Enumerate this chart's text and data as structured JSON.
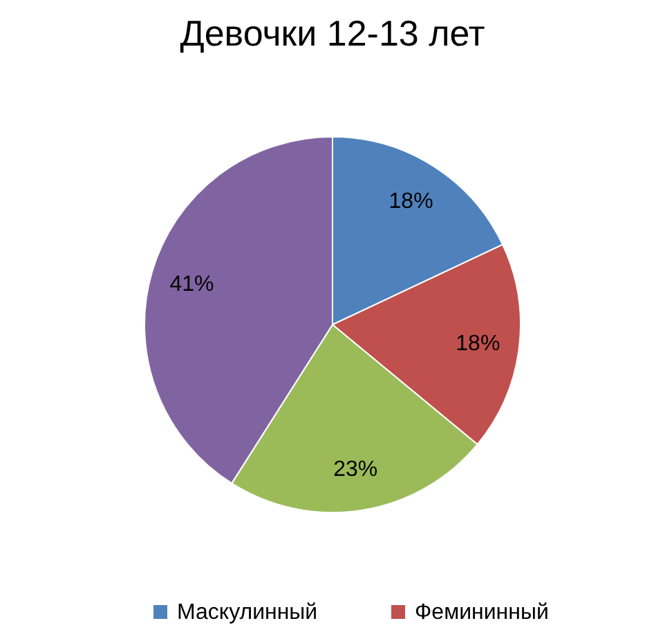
{
  "chart_data": {
    "type": "pie",
    "title": "Девочки 12-13 лет",
    "categories": [
      "Маскулинный",
      "Фемининный",
      null,
      null
    ],
    "values": [
      18,
      18,
      23,
      41
    ],
    "colors": [
      "#4f81bd",
      "#c0504d",
      "#9bbb59",
      "#8064a2"
    ],
    "value_labels": [
      "18%",
      "18%",
      "23%",
      "41%"
    ],
    "legend": "bottom"
  }
}
